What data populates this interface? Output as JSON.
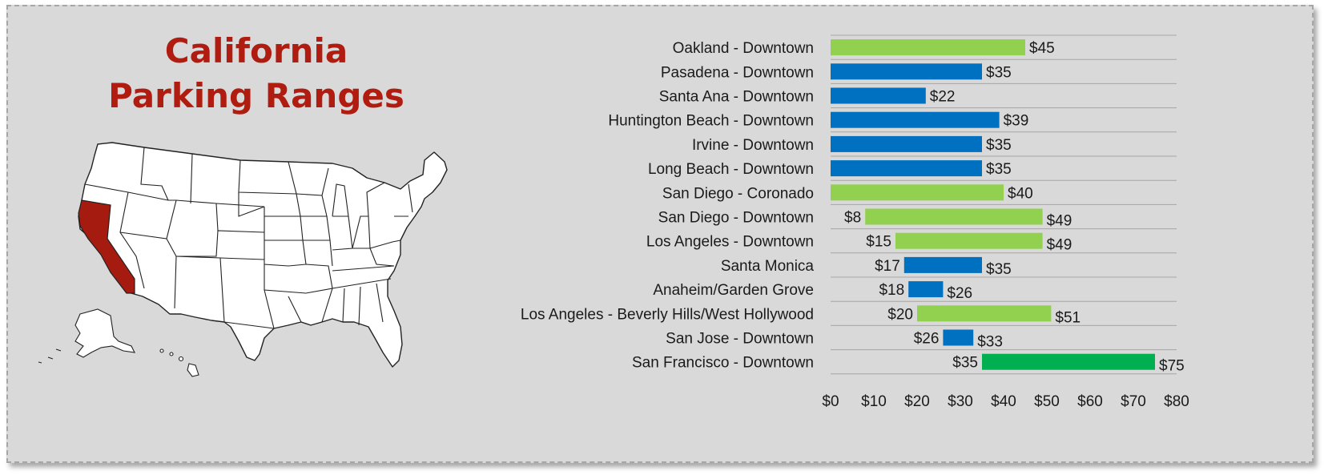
{
  "title": {
    "line1": "California",
    "line2": "Parking Ranges"
  },
  "map": {
    "icon": "us-map-icon",
    "highlighted_state": "California",
    "highlight_color": "#a61b10",
    "state_fill": "#ffffff",
    "state_stroke": "#222222"
  },
  "chart_data": {
    "type": "bar",
    "subtype": "floating-range",
    "orientation": "horizontal",
    "title": "California Parking Ranges",
    "xlabel": "",
    "ylabel": "",
    "xlim": [
      0,
      80
    ],
    "xticks": [
      0,
      10,
      20,
      30,
      40,
      50,
      60,
      70,
      80
    ],
    "tick_prefix": "$",
    "grid": "horizontal-row-separators",
    "legend": "none",
    "colors": {
      "blue": "#0070c0",
      "lightgreen": "#92d050",
      "green": "#00b050"
    },
    "bars": [
      {
        "label": "Oakland - Downtown",
        "low": 0,
        "high": 45,
        "color": "lightgreen",
        "low_label": "",
        "high_label": "$45"
      },
      {
        "label": "Pasadena - Downtown",
        "low": 0,
        "high": 35,
        "color": "blue",
        "low_label": "",
        "high_label": "$35"
      },
      {
        "label": "Santa Ana - Downtown",
        "low": 0,
        "high": 22,
        "color": "blue",
        "low_label": "",
        "high_label": "$22"
      },
      {
        "label": "Huntington Beach - Downtown",
        "low": 0,
        "high": 39,
        "color": "blue",
        "low_label": "",
        "high_label": "$39"
      },
      {
        "label": "Irvine - Downtown",
        "low": 0,
        "high": 35,
        "color": "blue",
        "low_label": "",
        "high_label": "$35"
      },
      {
        "label": "Long Beach - Downtown",
        "low": 0,
        "high": 35,
        "color": "blue",
        "low_label": "",
        "high_label": "$35"
      },
      {
        "label": "San Diego - Coronado",
        "low": 0,
        "high": 40,
        "color": "lightgreen",
        "low_label": "",
        "high_label": "$40"
      },
      {
        "label": "San Diego - Downtown",
        "low": 8,
        "high": 49,
        "color": "lightgreen",
        "low_label": "$8",
        "high_label": "$49"
      },
      {
        "label": "Los Angeles - Downtown",
        "low": 15,
        "high": 49,
        "color": "lightgreen",
        "low_label": "$15",
        "high_label": "$49"
      },
      {
        "label": "Santa Monica",
        "low": 17,
        "high": 35,
        "color": "blue",
        "low_label": "$17",
        "high_label": "$35"
      },
      {
        "label": "Anaheim/Garden Grove",
        "low": 18,
        "high": 26,
        "color": "blue",
        "low_label": "$18",
        "high_label": "$26"
      },
      {
        "label": "Los Angeles - Beverly Hills/West Hollywood",
        "low": 20,
        "high": 51,
        "color": "lightgreen",
        "low_label": "$20",
        "high_label": "$51"
      },
      {
        "label": "San Jose - Downtown",
        "low": 26,
        "high": 33,
        "color": "blue",
        "low_label": "$26",
        "high_label": "$33"
      },
      {
        "label": "San Francisco - Downtown",
        "low": 35,
        "high": 75,
        "color": "green",
        "low_label": "$35",
        "high_label": "$75"
      }
    ]
  }
}
